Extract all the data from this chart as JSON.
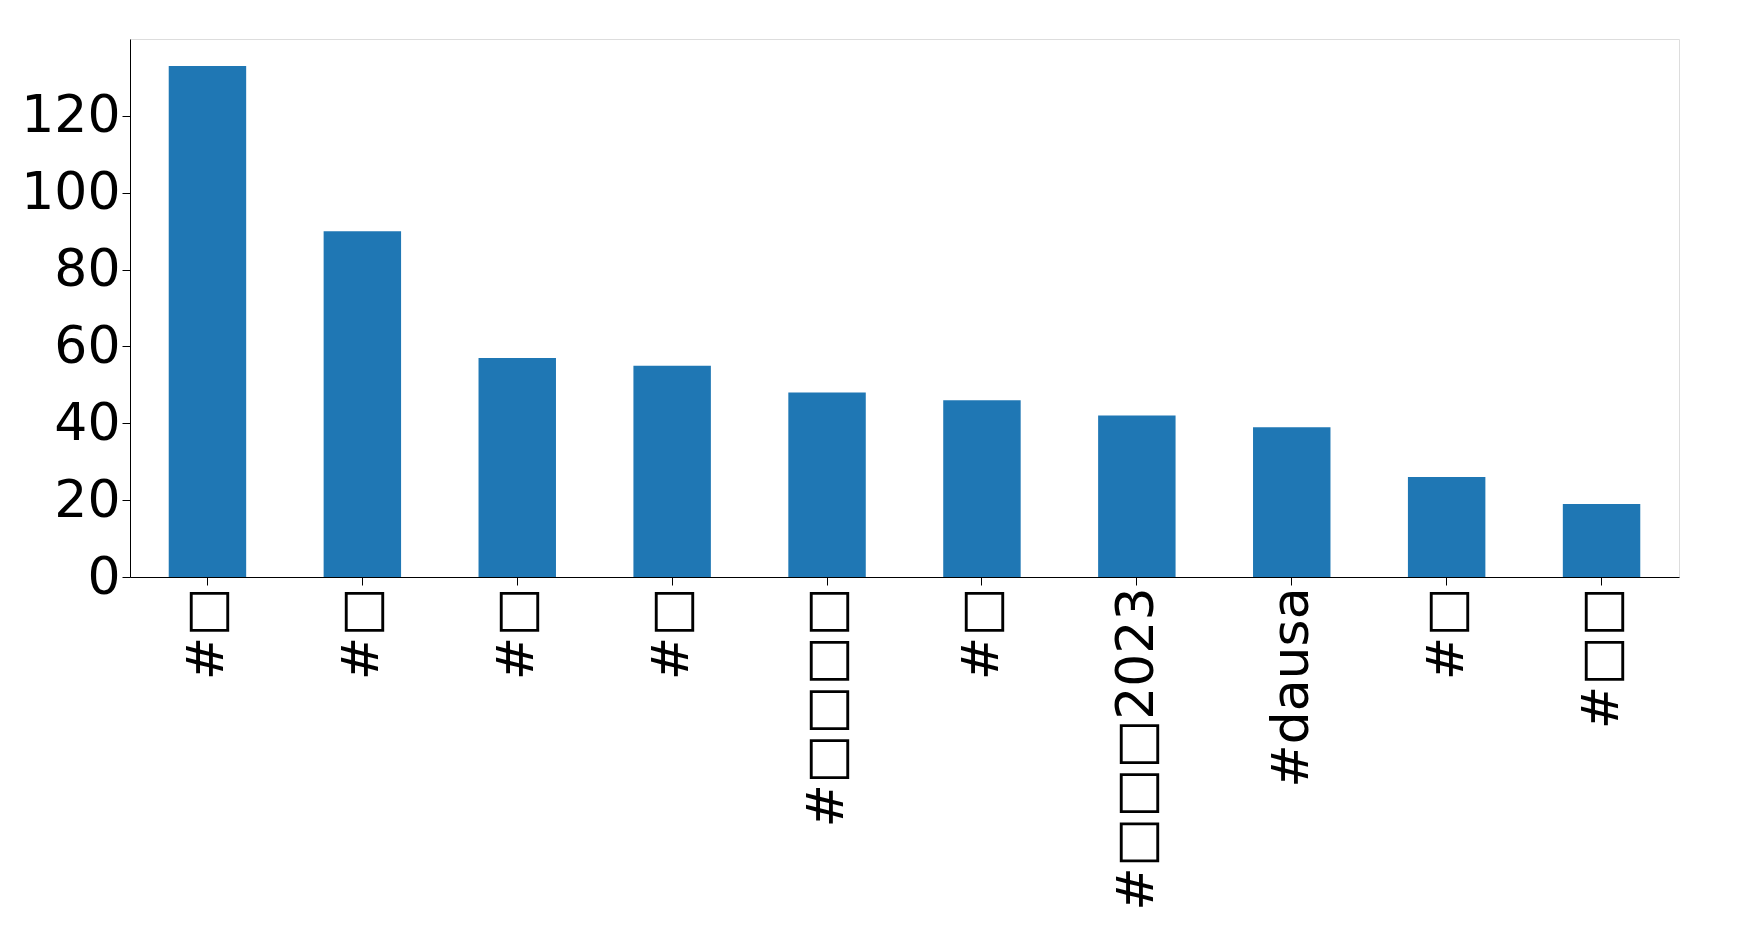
{
  "chart_data": {
    "type": "bar",
    "categories": [
      "#□",
      "#□",
      "#□",
      "#□",
      "#□□□□",
      "#□",
      "#□□□2023",
      "#dausa",
      "#□",
      "#□□"
    ],
    "values": [
      133,
      90,
      57,
      55,
      48,
      46,
      42,
      39,
      26,
      19
    ],
    "color": "#1f77b4",
    "ylim": [
      0,
      140
    ],
    "yticks": [
      0,
      20,
      40,
      60,
      80,
      100,
      120
    ],
    "grid": false
  }
}
